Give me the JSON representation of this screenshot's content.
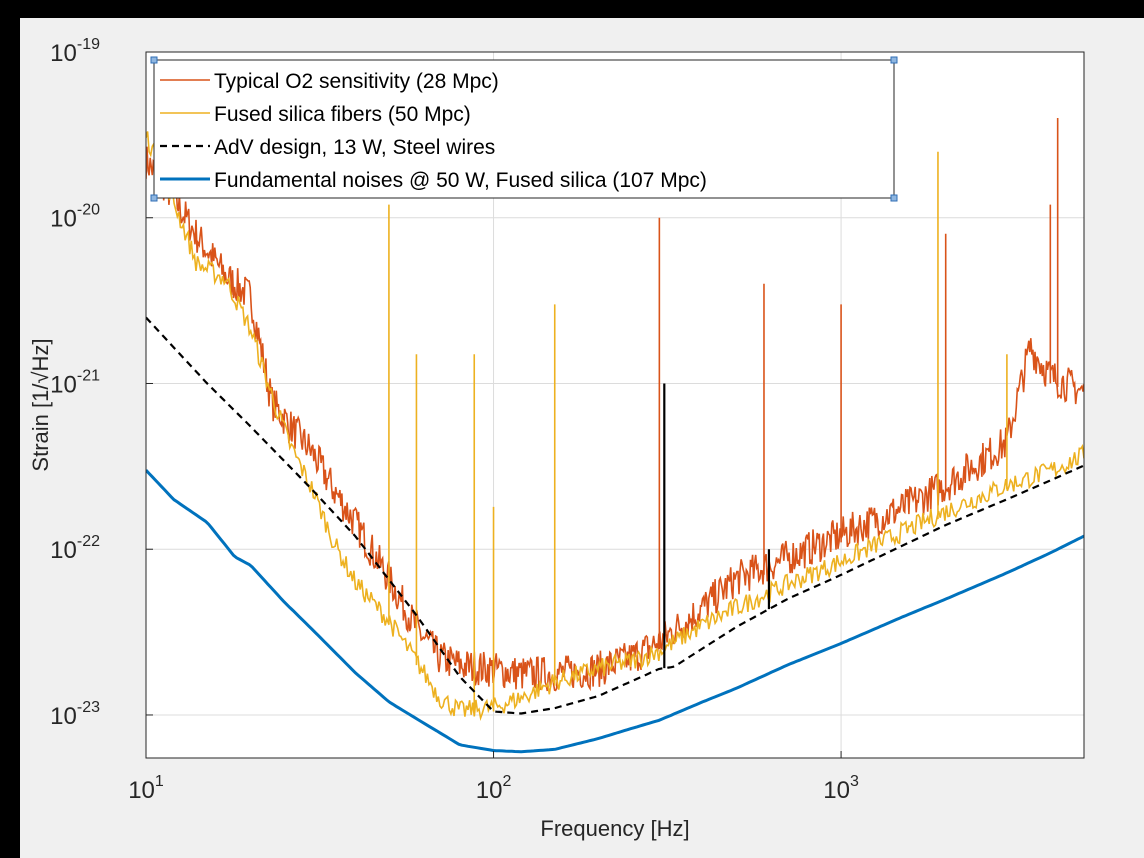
{
  "chart_data": {
    "type": "line",
    "title": "",
    "xlabel": "Frequency [Hz]",
    "ylabel": "Strain [1/√Hz]",
    "xscale": "log",
    "yscale": "log",
    "xlim": [
      10,
      5000
    ],
    "ylim": [
      5.5e-24,
      1e-19
    ],
    "xticks": [
      {
        "value": 10,
        "base": "10",
        "exp": "1"
      },
      {
        "value": 100,
        "base": "10",
        "exp": "2"
      },
      {
        "value": 1000,
        "base": "10",
        "exp": "3"
      }
    ],
    "yticks": [
      {
        "value": 1e-23,
        "base": "10",
        "exp": "-23"
      },
      {
        "value": 1e-22,
        "base": "10",
        "exp": "-22"
      },
      {
        "value": 1e-21,
        "base": "10",
        "exp": "-21"
      },
      {
        "value": 1e-20,
        "base": "10",
        "exp": "-20"
      },
      {
        "value": 1e-19,
        "base": "10",
        "exp": "-19"
      }
    ],
    "grid": true,
    "legend_position": "top-left",
    "series": [
      {
        "name": "Typical O2 sensitivity (28 Mpc)",
        "color": "#d95319",
        "style": "solid",
        "x": [
          10,
          12,
          14,
          17,
          20,
          23,
          26,
          30,
          35,
          40,
          50,
          60,
          70,
          80,
          100,
          120,
          150,
          200,
          250,
          300,
          400,
          500,
          700,
          1000,
          1500,
          2000,
          3000,
          3500,
          4000,
          5000
        ],
        "y": [
          2e-20,
          1.2e-20,
          7e-21,
          4e-21,
          3e-21,
          7e-22,
          5e-22,
          3.5e-22,
          2e-22,
          1.3e-22,
          6e-23,
          3e-23,
          2e-23,
          1.8e-23,
          1.7e-23,
          1.6e-23,
          1.6e-23,
          1.7e-23,
          2e-23,
          2.5e-23,
          4e-23,
          6e-23,
          8e-23,
          1.1e-22,
          1.6e-22,
          2.2e-22,
          4e-22,
          1.5e-21,
          1e-21,
          8e-22
        ],
        "peaks": [
          {
            "x": 300,
            "y": 1e-20
          },
          {
            "x": 1000,
            "y": 3e-21
          },
          {
            "x": 2000,
            "y": 8e-21
          },
          {
            "x": 4000,
            "y": 1.2e-20
          },
          {
            "x": 4200,
            "y": 4e-20
          },
          {
            "x": 600,
            "y": 4e-21
          }
        ]
      },
      {
        "name": "Fused silica fibers (50 Mpc)",
        "color": "#edb120",
        "style": "solid",
        "x": [
          10,
          12,
          14,
          17,
          20,
          23,
          26,
          30,
          35,
          40,
          50,
          60,
          70,
          80,
          100,
          120,
          150,
          200,
          250,
          300,
          400,
          500,
          700,
          1000,
          1500,
          2000,
          3000,
          4000,
          5000
        ],
        "y": [
          3e-20,
          1.2e-20,
          5e-21,
          4e-21,
          2e-21,
          8e-22,
          4e-22,
          2.2e-22,
          1e-22,
          6e-23,
          3.5e-23,
          2e-23,
          1.2e-23,
          1e-23,
          1.05e-23,
          1.2e-23,
          1.5e-23,
          1.8e-23,
          2e-23,
          2.3e-23,
          3.3e-23,
          4.2e-23,
          5.8e-23,
          8e-23,
          1.2e-22,
          1.6e-22,
          2.3e-22,
          2.8e-22,
          3.5e-22
        ],
        "peaks": [
          {
            "x": 50,
            "y": 1.2e-20
          },
          {
            "x": 60,
            "y": 1.5e-21
          },
          {
            "x": 88,
            "y": 1.5e-21
          },
          {
            "x": 100,
            "y": 1.8e-22
          },
          {
            "x": 150,
            "y": 3e-21
          },
          {
            "x": 1900,
            "y": 2.5e-20
          },
          {
            "x": 3000,
            "y": 1.5e-21
          }
        ]
      },
      {
        "name": "AdV design, 13 W, Steel wires",
        "color": "#000000",
        "style": "dashed",
        "x": [
          10,
          15,
          20,
          30,
          40,
          60,
          80,
          100,
          120,
          150,
          200,
          250,
          300,
          330,
          500,
          700,
          1000,
          1500,
          2000,
          3000,
          4000,
          5000
        ],
        "y": [
          2.5e-21,
          1e-21,
          5.5e-22,
          2.3e-22,
          1.2e-22,
          4e-23,
          1.7e-23,
          1.05e-23,
          1.02e-23,
          1.1e-23,
          1.3e-23,
          1.6e-23,
          1.9e-23,
          1.95e-23,
          3.4e-23,
          5e-23,
          7e-23,
          1.05e-22,
          1.4e-22,
          2e-22,
          2.6e-22,
          3.2e-22
        ],
        "peaks": [
          {
            "x": 310,
            "y": 1e-21
          },
          {
            "x": 620,
            "y": 1e-22
          }
        ]
      },
      {
        "name": "Fundamental noises @ 50 W, Fused silica (107 Mpc)",
        "color": "#0072bd",
        "style": "solid",
        "x": [
          10,
          12,
          15,
          18,
          20,
          25,
          30,
          40,
          50,
          60,
          80,
          100,
          120,
          150,
          200,
          250,
          300,
          400,
          500,
          700,
          1000,
          1500,
          2000,
          3000,
          4000,
          5000
        ],
        "y": [
          3e-22,
          2e-22,
          1.45e-22,
          9e-23,
          8e-23,
          4.8e-23,
          3.3e-23,
          1.8e-23,
          1.2e-23,
          9.5e-24,
          6.6e-24,
          6.1e-24,
          6e-24,
          6.2e-24,
          7.2e-24,
          8.3e-24,
          9.3e-24,
          1.2e-23,
          1.45e-23,
          2e-23,
          2.7e-23,
          3.9e-23,
          5e-23,
          7.2e-23,
          9.5e-23,
          1.2e-22
        ]
      }
    ]
  }
}
